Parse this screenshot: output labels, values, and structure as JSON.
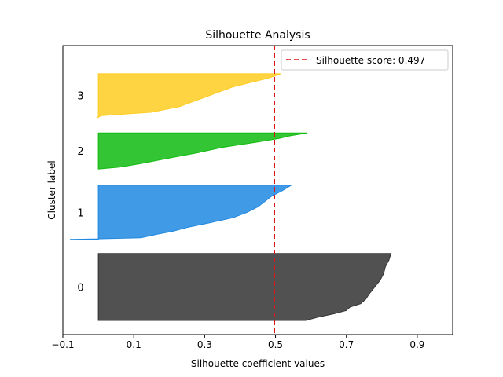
{
  "chart_data": {
    "type": "area",
    "title": "Silhouette Analysis",
    "xlabel": "Silhouette coefficient values",
    "ylabel": "Cluster label",
    "xlim": [
      -0.1,
      1.0
    ],
    "ylim": [
      0,
      41
    ],
    "xticks": [
      -0.1,
      0.1,
      0.3,
      0.5,
      0.7,
      0.9
    ],
    "xtick_labels": [
      "−0.1",
      "0.1",
      "0.3",
      "0.5",
      "0.7",
      "0.9"
    ],
    "grid": false,
    "legend_position": "upper right",
    "reference_line": {
      "label": "Silhouette score: 0.497",
      "value": 0.497,
      "color": "#dd1111",
      "style": "dashed"
    },
    "clusters": [
      {
        "label": "0",
        "color": "#333333",
        "y_start": 2,
        "y_end": 11.5,
        "profile": [
          [
            0.0,
            0.585
          ],
          [
            0.05,
            0.62
          ],
          [
            0.1,
            0.665
          ],
          [
            0.15,
            0.7
          ],
          [
            0.2,
            0.71
          ],
          [
            0.25,
            0.74
          ],
          [
            0.32,
            0.755
          ],
          [
            0.4,
            0.765
          ],
          [
            0.5,
            0.78
          ],
          [
            0.6,
            0.795
          ],
          [
            0.7,
            0.805
          ],
          [
            0.8,
            0.81
          ],
          [
            0.9,
            0.82
          ],
          [
            1.0,
            0.826
          ]
        ]
      },
      {
        "label": "1",
        "color": "#1f88e0",
        "y_start": 13.5,
        "y_end": 21.2,
        "profile": [
          [
            0.0,
            -0.08
          ],
          [
            0.01,
            0.0
          ],
          [
            0.03,
            0.12
          ],
          [
            0.1,
            0.17
          ],
          [
            0.15,
            0.21
          ],
          [
            0.22,
            0.25
          ],
          [
            0.3,
            0.31
          ],
          [
            0.4,
            0.38
          ],
          [
            0.5,
            0.42
          ],
          [
            0.6,
            0.45
          ],
          [
            0.7,
            0.47
          ],
          [
            0.8,
            0.49
          ],
          [
            0.9,
            0.52
          ],
          [
            1.0,
            0.545
          ]
        ]
      },
      {
        "label": "2",
        "color": "#11bb11",
        "y_start": 23.5,
        "y_end": 28.6,
        "profile": [
          [
            0.0,
            0.0
          ],
          [
            0.05,
            0.06
          ],
          [
            0.15,
            0.12
          ],
          [
            0.3,
            0.2
          ],
          [
            0.45,
            0.28
          ],
          [
            0.6,
            0.35
          ],
          [
            0.75,
            0.45
          ],
          [
            0.85,
            0.51
          ],
          [
            0.92,
            0.54
          ],
          [
            1.0,
            0.59
          ]
        ]
      },
      {
        "label": "3",
        "color": "#ffcc22",
        "y_start": 30.8,
        "y_end": 37,
        "profile": [
          [
            0.0,
            -0.005
          ],
          [
            0.04,
            0.01
          ],
          [
            0.12,
            0.15
          ],
          [
            0.25,
            0.23
          ],
          [
            0.4,
            0.28
          ],
          [
            0.55,
            0.33
          ],
          [
            0.7,
            0.38
          ],
          [
            0.8,
            0.43
          ],
          [
            0.9,
            0.48
          ],
          [
            1.0,
            0.515
          ]
        ]
      }
    ]
  }
}
